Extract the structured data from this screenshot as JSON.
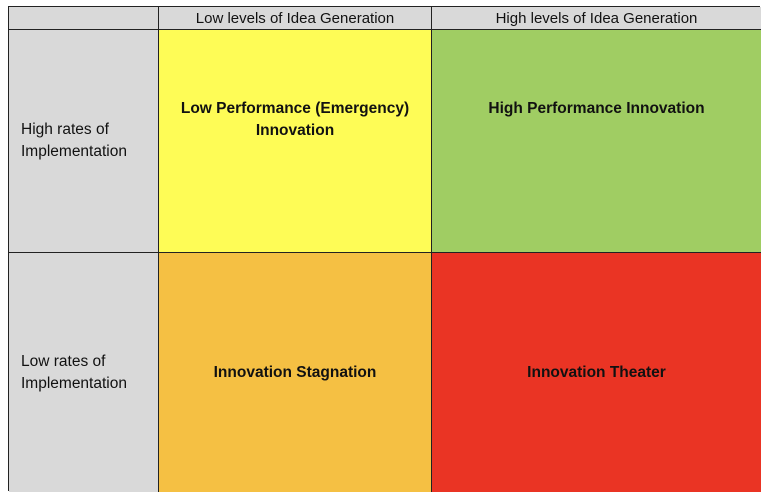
{
  "columns": [
    "Low levels of Idea Generation",
    "High levels of Idea Generation"
  ],
  "rows": [
    {
      "label_line1": "High rates of",
      "label_line2": "Implementation",
      "cells": [
        {
          "line1": "Low Performance (Emergency)",
          "line2": "Innovation"
        },
        {
          "line1": "High Performance Innovation",
          "line2": ""
        }
      ]
    },
    {
      "label_line1": "Low rates of",
      "label_line2": "Implementation",
      "cells": [
        {
          "line1": "Innovation Stagnation",
          "line2": ""
        },
        {
          "line1": "Innovation Theater",
          "line2": ""
        }
      ]
    }
  ],
  "colors": {
    "header": "#d9d9d9",
    "low_high": "#fefc56",
    "high_high": "#a0cd63",
    "low_low": "#f5c043",
    "high_low": "#ea3424"
  }
}
